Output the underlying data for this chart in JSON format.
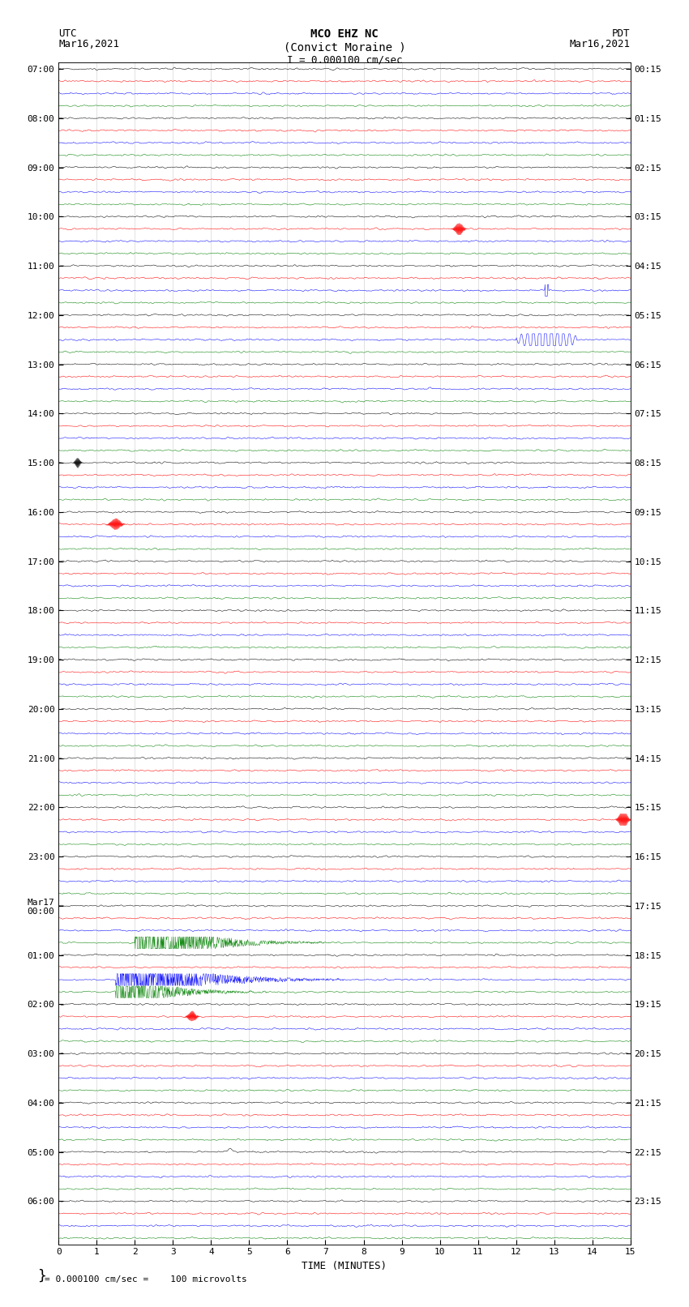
{
  "title_line1": "MCO EHZ NC",
  "title_line2": "(Convict Moraine )",
  "scale_text": "I = 0.000100 cm/sec",
  "bottom_text": "= 0.000100 cm/sec =    100 microvolts",
  "left_header_line1": "UTC",
  "left_header_line2": "Mar16,2021",
  "right_header_line1": "PDT",
  "right_header_line2": "Mar16,2021",
  "left_times": [
    "07:00",
    "08:00",
    "09:00",
    "10:00",
    "11:00",
    "12:00",
    "13:00",
    "14:00",
    "15:00",
    "16:00",
    "17:00",
    "18:00",
    "19:00",
    "20:00",
    "21:00",
    "22:00",
    "23:00",
    "00:00",
    "01:00",
    "02:00",
    "03:00",
    "04:00",
    "05:00",
    "06:00"
  ],
  "left_times_special": [
    17
  ],
  "right_times": [
    "00:15",
    "01:15",
    "02:15",
    "03:15",
    "04:15",
    "05:15",
    "06:15",
    "07:15",
    "08:15",
    "09:15",
    "10:15",
    "11:15",
    "12:15",
    "13:15",
    "14:15",
    "15:15",
    "16:15",
    "17:15",
    "18:15",
    "19:15",
    "20:15",
    "21:15",
    "22:15",
    "23:15"
  ],
  "trace_colors": [
    "black",
    "red",
    "blue",
    "green"
  ],
  "num_rows": 24,
  "traces_per_row": 4,
  "x_label": "TIME (MINUTES)",
  "x_ticks": [
    0,
    1,
    2,
    3,
    4,
    5,
    6,
    7,
    8,
    9,
    10,
    11,
    12,
    13,
    14,
    15
  ],
  "x_lim": [
    0,
    15
  ],
  "background_color": "white",
  "font_size": 9,
  "title_font_size": 10,
  "noise_amplitude": 0.08,
  "figsize": [
    8.5,
    16.13
  ],
  "dpi": 100
}
